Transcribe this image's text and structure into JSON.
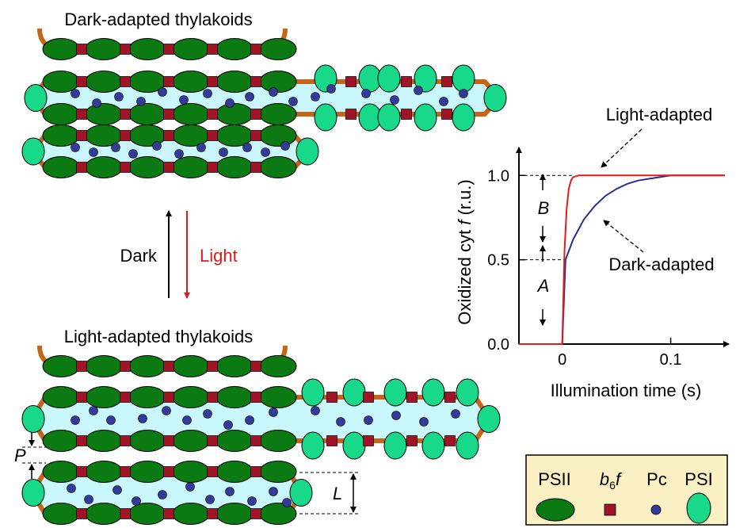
{
  "colors": {
    "membrane": "#c4651a",
    "lumen": "#c9f7fb",
    "psii": "#0b7a12",
    "psi": "#18d98a",
    "b6f": "#a01426",
    "pc": "#323a9a",
    "light": "#e21a1a",
    "dark": "#000000",
    "curve_light": "#e21a1a",
    "curve_dark": "#2a2f96",
    "legend_bg": "#fbf0c4"
  },
  "diagram": {
    "top_title": "Dark-adapted thylakoids",
    "bottom_title": "Light-adapted thylakoids",
    "dark_label": "Dark",
    "light_label": "Light",
    "p_label": "P",
    "l_label": "L"
  },
  "chart_data": {
    "type": "line",
    "xlabel": "Illumination time (s)",
    "ylabel_prefix": "Oxidized cyt ",
    "ylabel_italic": "f",
    "ylabel_suffix": " (r.u.)",
    "xticks": [
      "0",
      "0.1"
    ],
    "yticks": [
      "0.0",
      "0.5",
      "1.0"
    ],
    "xlim": [
      -0.04,
      0.15
    ],
    "ylim": [
      0,
      1.1
    ],
    "series": [
      {
        "name": "Light-adapted",
        "color": "#e21a1a",
        "x": [
          -0.04,
          0,
          0.002,
          0.004,
          0.006,
          0.008,
          0.01,
          0.015,
          0.02,
          0.15
        ],
        "y": [
          0,
          0,
          0.55,
          0.8,
          0.92,
          0.97,
          0.99,
          1.0,
          1.0,
          1.0
        ]
      },
      {
        "name": "Dark-adapted",
        "color": "#2a2f96",
        "x": [
          -0.04,
          0,
          0.003,
          0.01,
          0.02,
          0.03,
          0.04,
          0.05,
          0.06,
          0.07,
          0.08,
          0.09,
          0.1,
          0.11,
          0.15
        ],
        "y": [
          0,
          0,
          0.5,
          0.62,
          0.74,
          0.82,
          0.88,
          0.92,
          0.95,
          0.97,
          0.98,
          0.99,
          1.0,
          1.0,
          1.0
        ]
      }
    ],
    "annotation_A": "A",
    "annotation_B": "B"
  },
  "legend": {
    "psii": "PSII",
    "b6f_b": "b",
    "b6f_sub": "6",
    "b6f_f": "f",
    "pc": "Pc",
    "psi": "PSI"
  }
}
